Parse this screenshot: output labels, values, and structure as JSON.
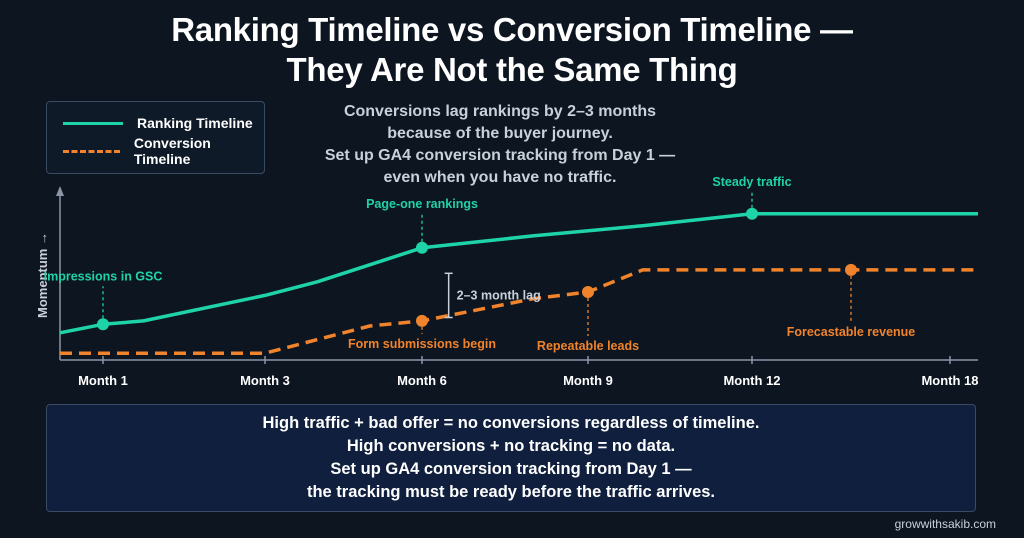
{
  "title_lines": [
    "Ranking Timeline vs Conversion Timeline —",
    "They Are Not the Same Thing"
  ],
  "subtitle_lines": [
    "Conversions lag rankings by 2–3 months",
    "because of the buyer journey.",
    "Set up GA4 conversion tracking from Day 1 —",
    "even when you have no traffic."
  ],
  "info_lines": [
    "High traffic + bad offer = no conversions regardless of timeline.",
    "High conversions + no tracking = no data.",
    "Set up GA4 conversion tracking from Day 1 —",
    "the tracking must be ready before the traffic arrives."
  ],
  "footer": "growwithsakib.com",
  "colors": {
    "ranking": "#1fd3a8",
    "conversion": "#f0832b",
    "axis": "#8a96a8"
  },
  "chart_data": {
    "type": "line",
    "xlabel": "",
    "ylabel": "Momentum →",
    "xlim": [
      0,
      18
    ],
    "ylim": [
      0,
      10
    ],
    "x_ticks": [
      {
        "value": 1,
        "label": "Month 1"
      },
      {
        "value": 3,
        "label": "Month 3"
      },
      {
        "value": 6,
        "label": "Month 6"
      },
      {
        "value": 9,
        "label": "Month 9"
      },
      {
        "value": 12,
        "label": "Month 12"
      },
      {
        "value": 18,
        "label": "Month 18"
      }
    ],
    "legend_position": "top-left",
    "series": [
      {
        "name": "Ranking Timeline",
        "style": "solid",
        "color": "#1fd3a8",
        "x": [
          0,
          1,
          1.5,
          3,
          4,
          5,
          6,
          8,
          10,
          12,
          14,
          16,
          18
        ],
        "y": [
          1.6,
          2.1,
          2.3,
          3.8,
          4.6,
          5.6,
          6.6,
          7.3,
          7.9,
          8.6,
          8.6,
          8.6,
          8.6
        ],
        "markers": [
          {
            "x": 1,
            "y": 2.1,
            "label": "Impressions in GSC"
          },
          {
            "x": 6,
            "y": 6.6,
            "label": "Page-one rankings"
          },
          {
            "x": 12,
            "y": 8.6,
            "label": "Steady traffic"
          }
        ]
      },
      {
        "name": "Conversion Timeline",
        "style": "dashed",
        "color": "#f0832b",
        "x": [
          0,
          1,
          3,
          4,
          5,
          6,
          8,
          9,
          10,
          12,
          14,
          16,
          18
        ],
        "y": [
          0.4,
          0.4,
          0.4,
          1.2,
          2.0,
          2.3,
          3.6,
          4.0,
          5.3,
          5.3,
          5.3,
          5.3,
          5.3
        ],
        "markers": [
          {
            "x": 6,
            "y": 2.3,
            "label": "Form submissions begin"
          },
          {
            "x": 9,
            "y": 4.0,
            "label": "Repeatable leads"
          },
          {
            "x": 15,
            "y": 5.3,
            "label": "Forecastable revenue"
          }
        ]
      }
    ],
    "annotations": [
      {
        "text": "2–3 month lag",
        "x": 6.5,
        "y_from": 2.5,
        "y_to": 5.1
      }
    ]
  }
}
